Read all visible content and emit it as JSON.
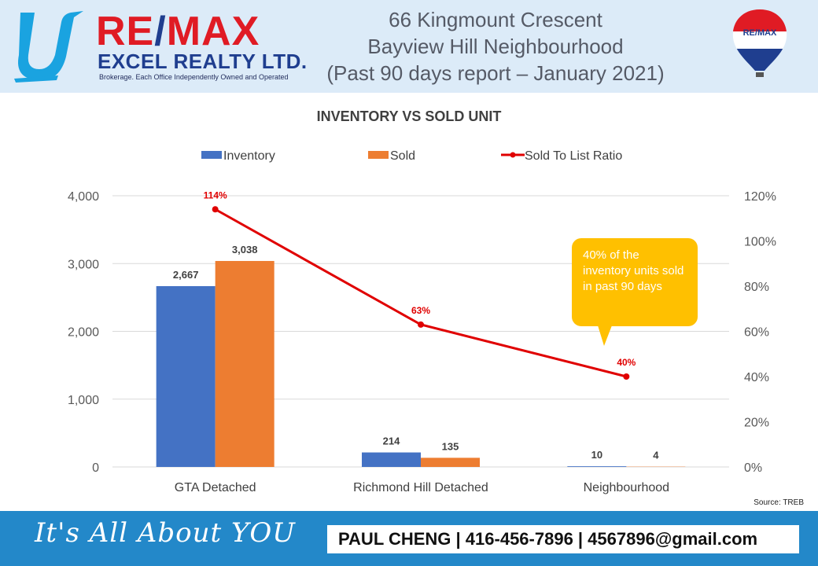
{
  "header": {
    "brand": {
      "re": "RE",
      "slash": "/",
      "max": "MAX",
      "excel": "EXCEL REALTY LTD.",
      "tagline": "Brokerage. Each Office Independently Owned and Operated",
      "balloon_label": "RE/MAX"
    },
    "title_lines": [
      "66 Kingmount Crescent",
      "Bayview Hill Neighbourhood",
      "(Past 90 days report – January 2021)"
    ]
  },
  "chart_data": {
    "type": "bar",
    "title": "INVENTORY VS SOLD UNIT",
    "categories": [
      "GTA Detached",
      "Richmond Hill Detached",
      "Neighbourhood"
    ],
    "series": [
      {
        "name": "Inventory",
        "type": "bar",
        "axis": "left",
        "color": "#4472c4",
        "values": [
          2667,
          214,
          10
        ],
        "labels": [
          "2,667",
          "214",
          "10"
        ]
      },
      {
        "name": "Sold",
        "type": "bar",
        "axis": "left",
        "color": "#ed7d31",
        "values": [
          3038,
          135,
          4
        ],
        "labels": [
          "3,038",
          "135",
          "4"
        ]
      },
      {
        "name": "Sold To List Ratio",
        "type": "line",
        "axis": "right",
        "color": "#e00000",
        "values": [
          114,
          63,
          40
        ],
        "labels": [
          "114%",
          "63%",
          "40%"
        ]
      }
    ],
    "ylim": [
      0,
      4000
    ],
    "yticks": [
      "0",
      "1,000",
      "2,000",
      "3,000",
      "4,000"
    ],
    "y2lim": [
      0,
      120
    ],
    "y2ticks": [
      "0%",
      "20%",
      "40%",
      "60%",
      "80%",
      "100%",
      "120%"
    ],
    "grid": true,
    "legend": "top",
    "annotation": "40% of the inventory units sold in past 90 days",
    "source": "Source: TREB"
  },
  "footer": {
    "slogan": "It's All About YOU",
    "contact": "PAUL CHENG | 416-456-7896 | 4567896@gmail.com"
  }
}
